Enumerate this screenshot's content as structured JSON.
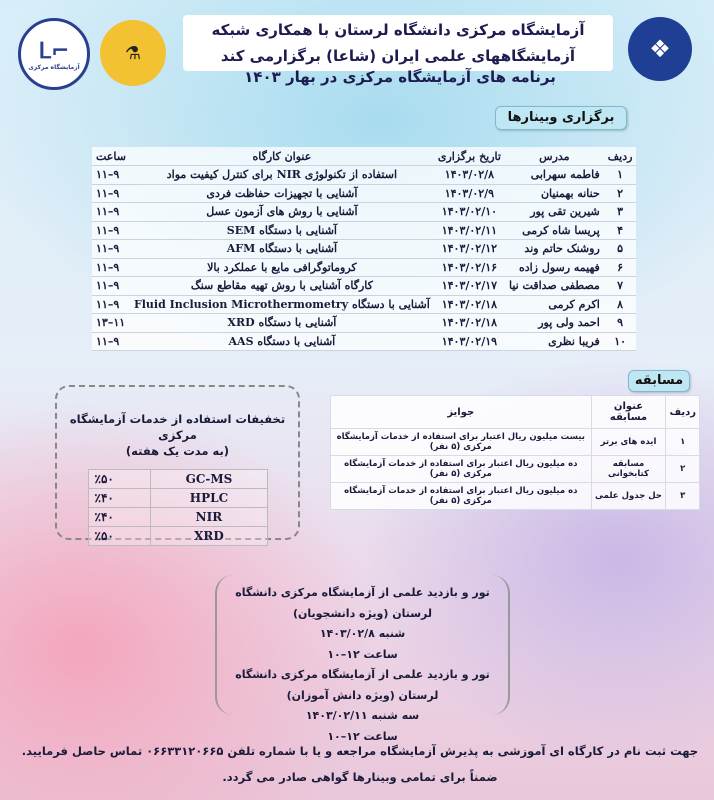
{
  "header": {
    "line1": "آزمایشگاه مرکزی دانشگاه لرستان با همکاری شبکه",
    "line2": "آزمایشگاههای علمی ایران (شاعا) برگزارمی کند",
    "subtitle": "برنامه های آزمایشگاه مرکزی در بهار ۱۴۰۳"
  },
  "logos": {
    "left": "آزمایشگاه مرکزی دانشگاه لرستان",
    "middle": "شاعا",
    "right": "دانشگاه لرستان"
  },
  "webinars": {
    "banner": "برگزاری وبینارها",
    "headers": [
      "ردیف",
      "مدرس",
      "تاریخ برگزاری",
      "عنوان کارگاه",
      "ساعت"
    ],
    "rows": [
      [
        "۱",
        "فاطمه سهرابی",
        "۱۴۰۳/۰۲/۸",
        "استفاده از تکنولوژی NIR برای کنترل کیفیت مواد",
        "۹–۱۱"
      ],
      [
        "۲",
        "حنانه بهمنیان",
        "۱۴۰۳/۰۲/۹",
        "آشنایی با تجهیزات حفاظت فردی",
        "۹–۱۱"
      ],
      [
        "۳",
        "شیرین تقی پور",
        "۱۴۰۳/۰۲/۱۰",
        "آشنایی با روش های آزمون عسل",
        "۹–۱۱"
      ],
      [
        "۴",
        "پریسا شاه کرمی",
        "۱۴۰۳/۰۲/۱۱",
        "آشنایی با دستگاه SEM",
        "۹–۱۱"
      ],
      [
        "۵",
        "روشنک حاتم وند",
        "۱۴۰۳/۰۲/۱۲",
        "آشنایی با دستگاه AFM",
        "۹–۱۱"
      ],
      [
        "۶",
        "فهیمه رسول زاده",
        "۱۴۰۳/۰۲/۱۶",
        "کروماتوگرافی مایع با عملکرد بالا",
        "۹–۱۱"
      ],
      [
        "۷",
        "مصطفی صداقت نیا",
        "۱۴۰۳/۰۲/۱۷",
        "کارگاه آشنایی با روش تهیه مقاطع سنگ",
        "۹–۱۱"
      ],
      [
        "۸",
        "اکرم کرمی",
        "۱۴۰۳/۰۲/۱۸",
        "آشنایی با دستگاه Fluid Inclusion Microthermometry",
        "۹–۱۱"
      ],
      [
        "۹",
        "احمد ولی پور",
        "۱۴۰۳/۰۲/۱۸",
        "آشنایی با دستگاه XRD",
        "۱۱–۱۳"
      ],
      [
        "۱۰",
        "فریبا نظری",
        "۱۴۰۳/۰۲/۱۹",
        "آشنایی با دستگاه AAS",
        "۹–۱۱"
      ]
    ]
  },
  "competition": {
    "banner": "مسابقه",
    "headers": [
      "ردیف",
      "عنوان مسابقه",
      "جوایز"
    ],
    "rows": [
      [
        "۱",
        "ایده های برتر",
        "بیست میلیون ریال اعتبار برای استفاده از خدمات آزمایشگاه مرکزی (۵ نفر)"
      ],
      [
        "۲",
        "مسابقه کتابخوانی",
        "ده میلیون ریال اعتبار برای استفاده از خدمات آزمایشگاه مرکزی (۵ نفر)"
      ],
      [
        "۳",
        "حل جدول علمی",
        "ده میلیون ریال اعتبار برای استفاده از خدمات آزمایشگاه مرکزی (۵ نفر)"
      ]
    ]
  },
  "discounts": {
    "title": "تخفیفات استفاده از خدمات آزمایشگاه مرکزی",
    "subtitle": "(به مدت یک هفته)",
    "rows": [
      [
        "GC-MS",
        "٪۵۰"
      ],
      [
        "HPLC",
        "٪۴۰"
      ],
      [
        "NIR",
        "٪۴۰"
      ],
      [
        "XRD",
        "٪۵۰"
      ]
    ]
  },
  "tour": {
    "lines": [
      "تور و بازدید علمی از آزمایشگاه مرکزی دانشگاه لرستان (ویژه دانشجویان)",
      "شنبه ۱۴۰۳/۰۲/۸",
      "ساعت ۱۲–۱۰",
      "تور و بازدید علمی از آزمایشگاه مرکزی دانشگاه لرستان (ویژه دانش آموزان)",
      "سه شنبه ۱۴۰۳/۰۲/۱۱",
      "ساعت ۱۲–۱۰"
    ]
  },
  "footer": {
    "line1": "جهت ثبت نام در کارگاه ای آموزشی به پذیرش آزمایشگاه مراجعه و یا با شماره تلفن ۰۶۶۳۳۱۲۰۶۶۵ تماس حاصل فرمایید.",
    "line2": "ضمناً برای تمامی وبینارها گواهی صادر می گردد."
  }
}
